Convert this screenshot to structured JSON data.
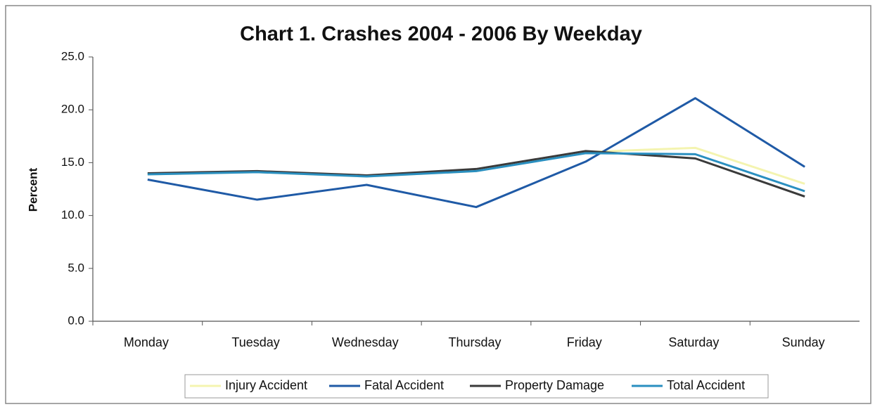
{
  "chart_data": {
    "type": "line",
    "title": "Chart 1. Crashes 2004 - 2006 By Weekday",
    "y_label": "Percent",
    "categories": [
      "Monday",
      "Tuesday",
      "Wednesday",
      "Thursday",
      "Friday",
      "Saturday",
      "Sunday"
    ],
    "series": [
      {
        "name": "Injury Accident",
        "color": "#f4f4b0",
        "values": [
          13.9,
          14.1,
          13.7,
          14.2,
          16.0,
          16.4,
          13.0
        ]
      },
      {
        "name": "Fatal Accident",
        "color": "#1f5aa6",
        "values": [
          13.4,
          11.5,
          12.9,
          10.8,
          15.1,
          21.1,
          14.6
        ]
      },
      {
        "name": "Property Damage",
        "color": "#3a3a3a",
        "values": [
          14.0,
          14.2,
          13.8,
          14.4,
          16.1,
          15.4,
          11.8
        ]
      },
      {
        "name": "Total Accident",
        "color": "#2a8fc0",
        "values": [
          13.9,
          14.1,
          13.7,
          14.2,
          15.9,
          15.8,
          12.3
        ]
      }
    ],
    "ylim": [
      0,
      25
    ],
    "yticks": [
      {
        "value": 0,
        "label": "0.0"
      },
      {
        "value": 5,
        "label": "5.0"
      },
      {
        "value": 10,
        "label": "10.0"
      },
      {
        "value": 15,
        "label": "15.0"
      },
      {
        "value": 20,
        "label": "20.0"
      },
      {
        "value": 25,
        "label": "25.0"
      }
    ],
    "legend": "bottom"
  }
}
